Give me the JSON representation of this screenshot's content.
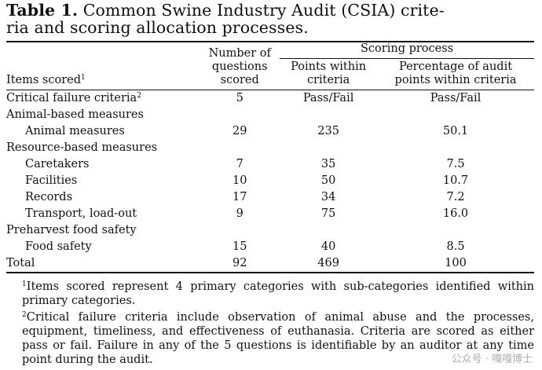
{
  "caption": {
    "label": "Table 1.",
    "text_line1": "Common Swine Industry Audit (CSIA) crite-",
    "text_line2": "ria and scoring allocation processes."
  },
  "headers": {
    "items_scored": "Items scored",
    "items_scored_sup": "1",
    "num_questions_l1": "Number of",
    "num_questions_l2": "questions",
    "num_questions_l3": "scored",
    "scoring_process": "Scoring process",
    "points_l1": "Points within",
    "points_l2": "criteria",
    "percentage_l1": "Percentage of audit",
    "percentage_l2": "points within criteria"
  },
  "rows": [
    {
      "label": "Critical failure criteria",
      "sup": "2",
      "questions": "5",
      "points": "Pass/Fail",
      "percentage": "Pass/Fail"
    },
    {
      "label": "Animal-based measures",
      "questions": "",
      "points": "",
      "percentage": ""
    },
    {
      "label": "Animal measures",
      "questions": "29",
      "points": "235",
      "percentage": "50.1"
    },
    {
      "label": "Resource-based measures",
      "questions": "",
      "points": "",
      "percentage": ""
    },
    {
      "label": "Caretakers",
      "questions": "7",
      "points": "35",
      "percentage": "7.5"
    },
    {
      "label": "Facilities",
      "questions": "10",
      "points": "50",
      "percentage": "10.7"
    },
    {
      "label": "Records",
      "questions": "17",
      "points": "34",
      "percentage": "7.2"
    },
    {
      "label": "Transport, load-out",
      "questions": "9",
      "points": "75",
      "percentage": "16.0"
    },
    {
      "label": "Preharvest food safety",
      "questions": "",
      "points": "",
      "percentage": ""
    },
    {
      "label": "Food safety",
      "questions": "15",
      "points": "40",
      "percentage": "8.5"
    },
    {
      "label": "Total",
      "questions": "92",
      "points": "469",
      "percentage": "100"
    }
  ],
  "footnotes": {
    "fn1_sup": "1",
    "fn1_text": "Items scored represent 4 primary categories with sub-categories identified within primary categories.",
    "fn2_sup": "2",
    "fn2_text": "Critical failure criteria include observation of animal abuse and the processes, equipment, timeliness, and effectiveness of euthanasia. Criteria are scored as either pass or fail. Failure in any of the 5 questions is identifiable by an auditor at any time point during the audit."
  },
  "watermark": "公众号 · 嘎嘎博士"
}
